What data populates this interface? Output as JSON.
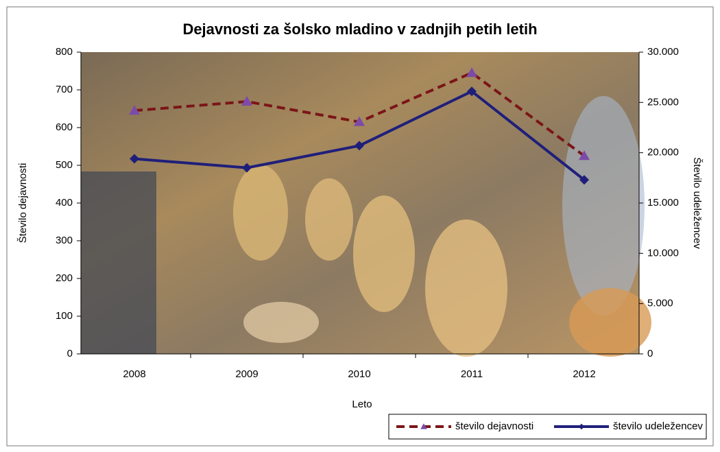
{
  "chart_data": {
    "type": "line",
    "title": "Dejavnosti za šolsko mladino v zadnjih petih letih",
    "x_label": "Leto",
    "y_label": "Število dejavnosti",
    "y2_label": "Število udeležencev",
    "categories": [
      "2008",
      "2009",
      "2010",
      "2011",
      "2012"
    ],
    "series": [
      {
        "name": "število dejavnosti",
        "color": "#7b1518",
        "dash": true,
        "marker": "triangle",
        "marker_color": "#7c4aa8",
        "axis": "y",
        "values": [
          645,
          669,
          615,
          745,
          525
        ]
      },
      {
        "name": "število udeležencev",
        "color": "#1f1f7a",
        "dash": false,
        "marker": "diamond",
        "marker_color": "#1f1f7a",
        "axis": "y2",
        "values": [
          19400,
          18500,
          20700,
          26100,
          17300
        ]
      }
    ],
    "ylim": [
      0,
      800
    ],
    "yticks": [
      0,
      100,
      200,
      300,
      400,
      500,
      600,
      700,
      800
    ],
    "y2lim": [
      0,
      30000
    ],
    "y2ticks": [
      0,
      {
        "value": 5000,
        "label": "5.000"
      },
      {
        "value": 10000,
        "label": "10.000"
      },
      {
        "value": 15000,
        "label": "15.000"
      },
      {
        "value": 20000,
        "label": "20.000"
      },
      {
        "value": 25000,
        "label": "25.000"
      },
      {
        "value": 30000,
        "label": "30.000"
      }
    ],
    "legend": "bottom-right"
  }
}
